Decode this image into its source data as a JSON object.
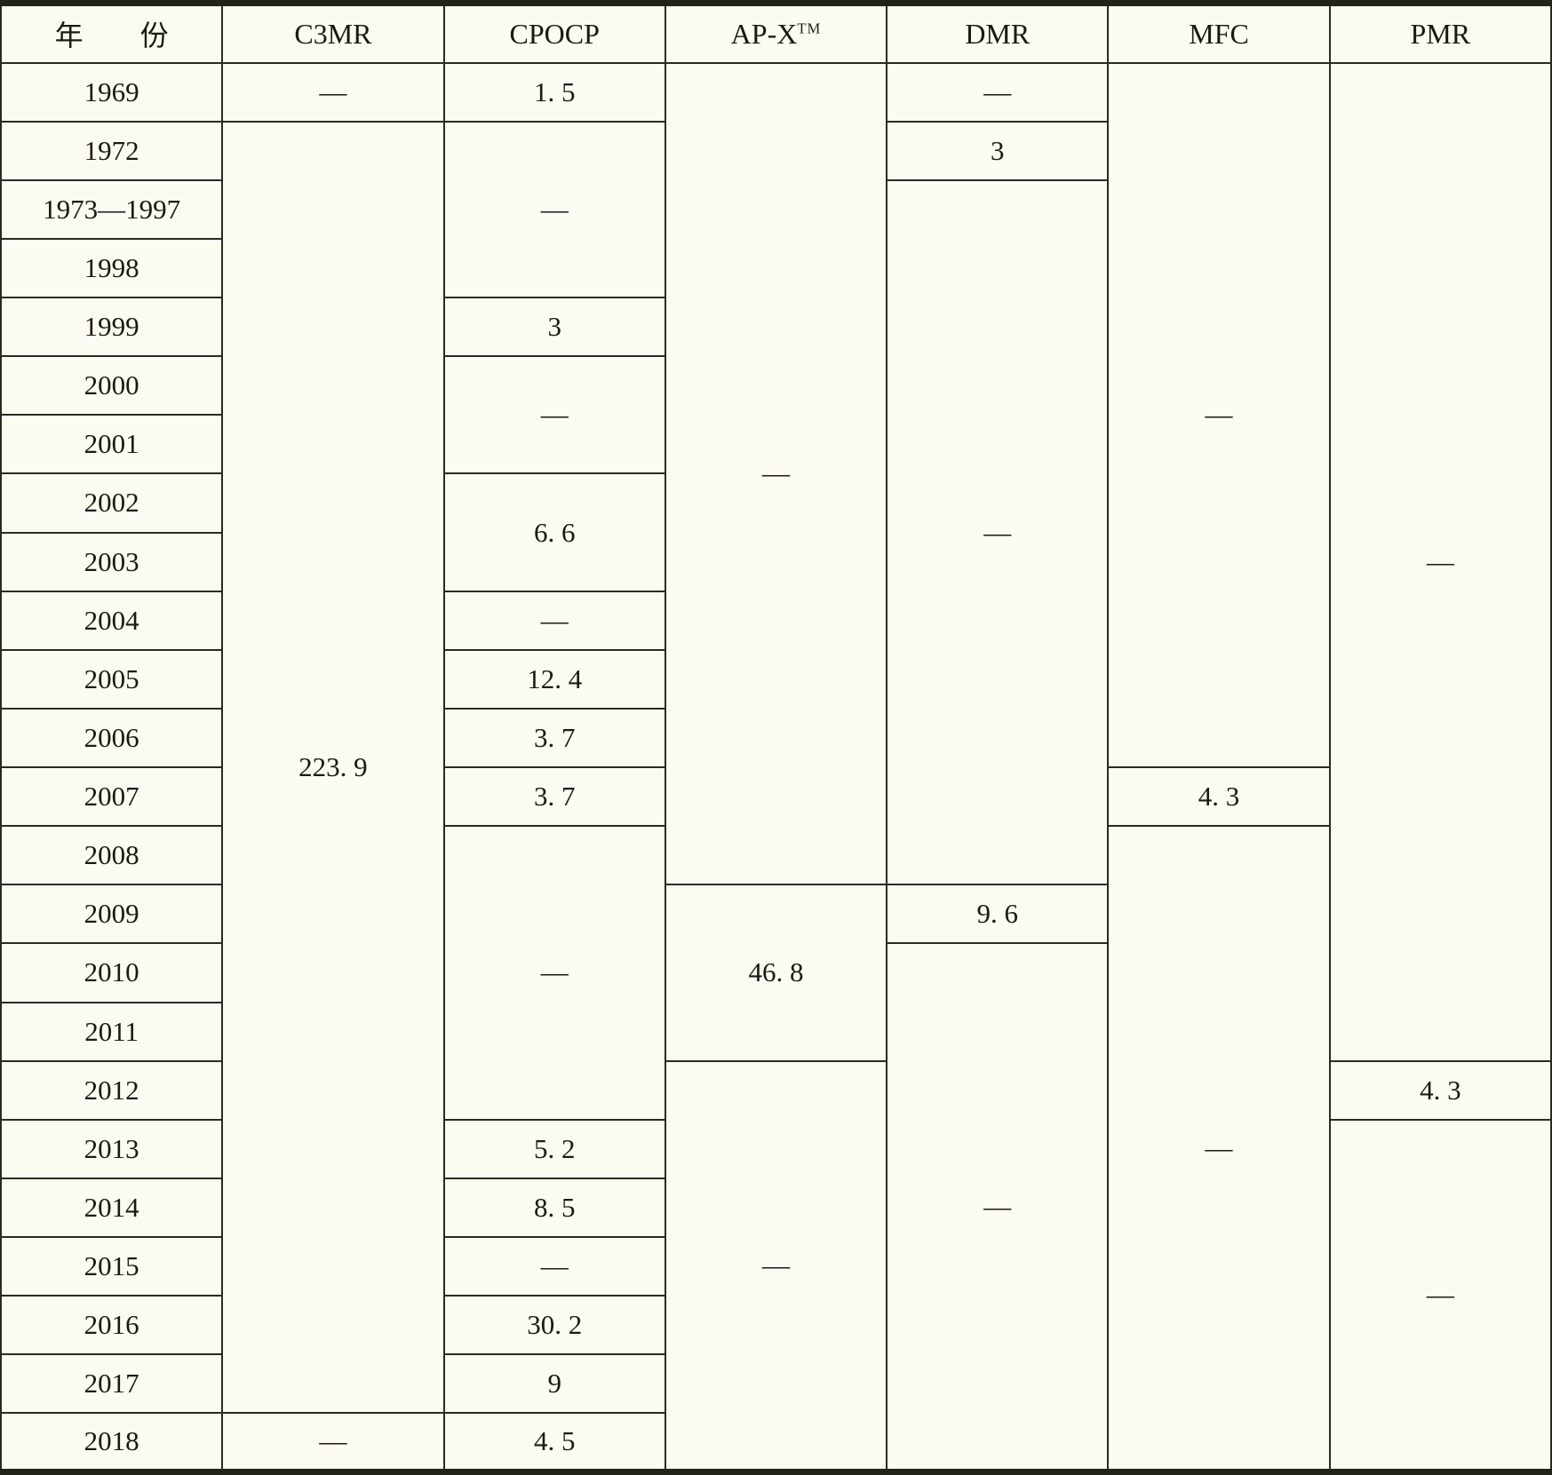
{
  "page": {
    "background_color": "#fcfbf2",
    "ink_color": "#1b1a12"
  },
  "table": {
    "columns": [
      {
        "key": "year",
        "label": "年　　份"
      },
      {
        "key": "c3mr",
        "label": "C3MR"
      },
      {
        "key": "cpocp",
        "label": "CPOCP"
      },
      {
        "key": "apx",
        "label": "AP-X",
        "sup": "TM"
      },
      {
        "key": "dmr",
        "label": "DMR"
      },
      {
        "key": "mfc",
        "label": "MFC"
      },
      {
        "key": "pmr",
        "label": "PMR"
      }
    ],
    "years": [
      "1969",
      "1972",
      "1973—1997",
      "1998",
      "1999",
      "2000",
      "2001",
      "2002",
      "2003",
      "2004",
      "2005",
      "2006",
      "2007",
      "2008",
      "2009",
      "2010",
      "2011",
      "2012",
      "2013",
      "2014",
      "2015",
      "2016",
      "2017",
      "2018"
    ],
    "cells": [
      {
        "col": 1,
        "row": 1,
        "span": 1,
        "value": "—"
      },
      {
        "col": 1,
        "row": 2,
        "span": 22,
        "value": "223. 9"
      },
      {
        "col": 1,
        "row": 24,
        "span": 1,
        "value": "—"
      },
      {
        "col": 2,
        "row": 1,
        "span": 1,
        "value": "1. 5"
      },
      {
        "col": 2,
        "row": 2,
        "span": 3,
        "value": "—"
      },
      {
        "col": 2,
        "row": 5,
        "span": 1,
        "value": "3"
      },
      {
        "col": 2,
        "row": 6,
        "span": 2,
        "value": "—"
      },
      {
        "col": 2,
        "row": 8,
        "span": 2,
        "value": "6. 6"
      },
      {
        "col": 2,
        "row": 10,
        "span": 1,
        "value": "—"
      },
      {
        "col": 2,
        "row": 11,
        "span": 1,
        "value": "12. 4"
      },
      {
        "col": 2,
        "row": 12,
        "span": 1,
        "value": "3. 7"
      },
      {
        "col": 2,
        "row": 13,
        "span": 1,
        "value": "3. 7"
      },
      {
        "col": 2,
        "row": 14,
        "span": 5,
        "value": "—"
      },
      {
        "col": 2,
        "row": 19,
        "span": 1,
        "value": "5. 2"
      },
      {
        "col": 2,
        "row": 20,
        "span": 1,
        "value": "8. 5"
      },
      {
        "col": 2,
        "row": 21,
        "span": 1,
        "value": "—"
      },
      {
        "col": 2,
        "row": 22,
        "span": 1,
        "value": "30. 2"
      },
      {
        "col": 2,
        "row": 23,
        "span": 1,
        "value": "9"
      },
      {
        "col": 2,
        "row": 24,
        "span": 1,
        "value": "4. 5"
      },
      {
        "col": 3,
        "row": 1,
        "span": 14,
        "value": "—"
      },
      {
        "col": 3,
        "row": 15,
        "span": 3,
        "value": "46. 8"
      },
      {
        "col": 3,
        "row": 18,
        "span": 7,
        "value": "—"
      },
      {
        "col": 4,
        "row": 1,
        "span": 1,
        "value": "—"
      },
      {
        "col": 4,
        "row": 2,
        "span": 1,
        "value": "3"
      },
      {
        "col": 4,
        "row": 3,
        "span": 12,
        "value": "—"
      },
      {
        "col": 4,
        "row": 15,
        "span": 1,
        "value": "9. 6"
      },
      {
        "col": 4,
        "row": 16,
        "span": 9,
        "value": "—"
      },
      {
        "col": 5,
        "row": 1,
        "span": 12,
        "value": "—"
      },
      {
        "col": 5,
        "row": 13,
        "span": 1,
        "value": "4. 3"
      },
      {
        "col": 5,
        "row": 14,
        "span": 11,
        "value": "—"
      },
      {
        "col": 6,
        "row": 1,
        "span": 17,
        "value": "—"
      },
      {
        "col": 6,
        "row": 18,
        "span": 1,
        "value": "4. 3"
      },
      {
        "col": 6,
        "row": 19,
        "span": 6,
        "value": "—"
      }
    ]
  }
}
